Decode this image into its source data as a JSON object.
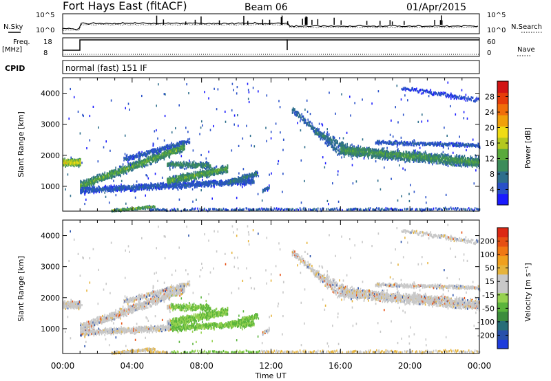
{
  "header": {
    "station": "Fort Hays East (fitACF)",
    "beam": "Beam 06",
    "date": "01/Apr/2015",
    "nsky_label": "N.Sky",
    "nsearch_label": "N.Search",
    "freq_label_1": "Freq.",
    "freq_label_2": "[MHz]",
    "nave_label": "Nave",
    "cpid_label": "CPID",
    "cpid_text": "normal (fast) 151 IF",
    "noise_ticks": [
      "10^5",
      "10^0"
    ],
    "freq_ticks": [
      "18",
      "8"
    ],
    "nave_ticks": [
      "60",
      "0"
    ]
  },
  "chart_data": [
    {
      "type": "heatmap",
      "name": "power-panel",
      "xlabel": "",
      "ylabel": "Slant Range [km]",
      "xlim": [
        0,
        24
      ],
      "ylim": [
        200,
        4500
      ],
      "yticks": [
        1000,
        2000,
        3000,
        4000
      ],
      "colorbar": {
        "label": "Power [dB]",
        "ticks": [
          "28",
          "24",
          "20",
          "16",
          "12",
          "8",
          "4"
        ],
        "colors": [
          "#1a1aff",
          "#2850c8",
          "#2d6e8c",
          "#3c8c5a",
          "#5aaa3c",
          "#b4c81e",
          "#f0dc14",
          "#f0a00a",
          "#f06e0a",
          "#e63c0a",
          "#d21414"
        ]
      }
    },
    {
      "type": "heatmap",
      "name": "velocity-panel",
      "xlabel": "Time UT",
      "ylabel": "Slant Range [km]",
      "xlim": [
        0,
        24
      ],
      "ylim": [
        200,
        4500
      ],
      "yticks": [
        1000,
        2000,
        3000,
        4000
      ],
      "xticks": [
        "00:00",
        "04:00",
        "08:00",
        "12:00",
        "16:00",
        "20:00",
        "00:00"
      ],
      "colorbar": {
        "label": "Velocity [m s⁻¹]",
        "ticks": [
          "200",
          "100",
          "50",
          "15",
          "-15",
          "-50",
          "-100",
          "-200"
        ],
        "colors": [
          "#1e3cdc",
          "#2850aa",
          "#286e78",
          "#3c8c3c",
          "#5ab43c",
          "#96d250",
          "#c8c8c8",
          "#c8c8c8",
          "#e6b43c",
          "#f0a01e",
          "#f07814",
          "#e65014",
          "#dc2814"
        ]
      }
    }
  ]
}
